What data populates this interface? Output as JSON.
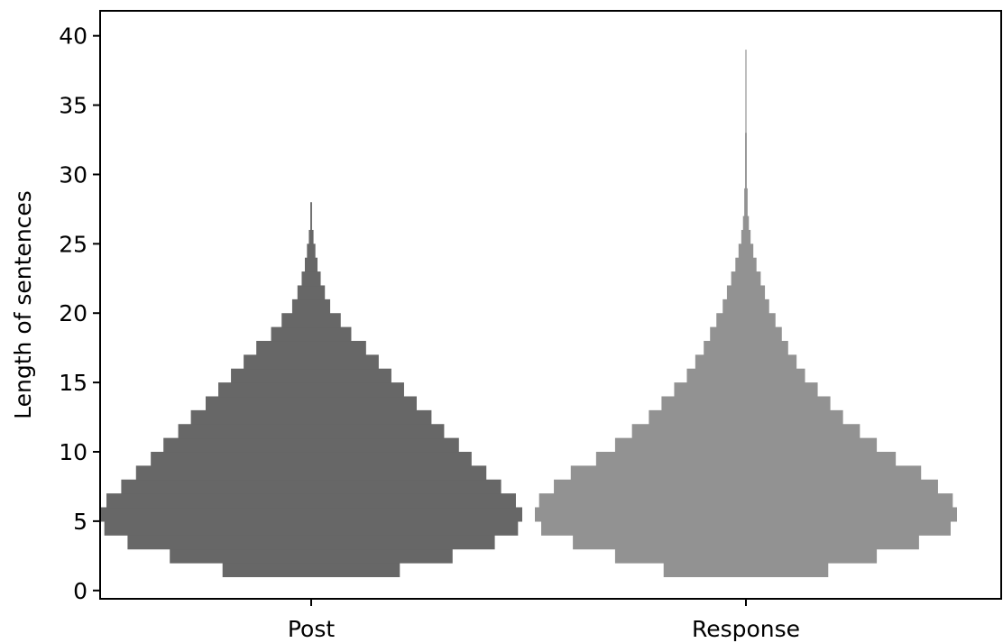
{
  "chart_data": {
    "type": "histogram-violin",
    "title": "",
    "xlabel": "",
    "ylabel": "Length of sentences",
    "ylim": [
      -0.6,
      41.8
    ],
    "yticks": [
      0,
      5,
      10,
      15,
      20,
      25,
      30,
      35,
      40
    ],
    "categories": [
      "Post",
      "Response"
    ],
    "grid": false,
    "legend": "none",
    "colors": {
      "Post": "#676767",
      "Response": "#929292"
    },
    "note_widths": "relative half-width of each length bin (fraction of max half-width per category)",
    "series": [
      {
        "name": "Post",
        "bins": [
          {
            "y0": 1,
            "y1": 2,
            "w": 0.42
          },
          {
            "y0": 2,
            "y1": 3,
            "w": 0.67
          },
          {
            "y0": 3,
            "y1": 4,
            "w": 0.87
          },
          {
            "y0": 4,
            "y1": 5,
            "w": 0.98
          },
          {
            "y0": 5,
            "y1": 6,
            "w": 1.0
          },
          {
            "y0": 6,
            "y1": 7,
            "w": 0.97
          },
          {
            "y0": 7,
            "y1": 8,
            "w": 0.9
          },
          {
            "y0": 8,
            "y1": 9,
            "w": 0.83
          },
          {
            "y0": 9,
            "y1": 10,
            "w": 0.76
          },
          {
            "y0": 10,
            "y1": 11,
            "w": 0.7
          },
          {
            "y0": 11,
            "y1": 12,
            "w": 0.63
          },
          {
            "y0": 12,
            "y1": 13,
            "w": 0.57
          },
          {
            "y0": 13,
            "y1": 14,
            "w": 0.5
          },
          {
            "y0": 14,
            "y1": 15,
            "w": 0.44
          },
          {
            "y0": 15,
            "y1": 16,
            "w": 0.38
          },
          {
            "y0": 16,
            "y1": 17,
            "w": 0.32
          },
          {
            "y0": 17,
            "y1": 18,
            "w": 0.26
          },
          {
            "y0": 18,
            "y1": 19,
            "w": 0.19
          },
          {
            "y0": 19,
            "y1": 20,
            "w": 0.14
          },
          {
            "y0": 20,
            "y1": 21,
            "w": 0.09
          },
          {
            "y0": 21,
            "y1": 22,
            "w": 0.065
          },
          {
            "y0": 22,
            "y1": 23,
            "w": 0.045
          },
          {
            "y0": 23,
            "y1": 24,
            "w": 0.03
          },
          {
            "y0": 24,
            "y1": 25,
            "w": 0.02
          },
          {
            "y0": 25,
            "y1": 26,
            "w": 0.011
          },
          {
            "y0": 26,
            "y1": 28,
            "w": 0.004
          }
        ]
      },
      {
        "name": "Response",
        "bins": [
          {
            "y0": 1,
            "y1": 2,
            "w": 0.39
          },
          {
            "y0": 2,
            "y1": 3,
            "w": 0.62
          },
          {
            "y0": 3,
            "y1": 4,
            "w": 0.82
          },
          {
            "y0": 4,
            "y1": 5,
            "w": 0.97
          },
          {
            "y0": 5,
            "y1": 6,
            "w": 1.0
          },
          {
            "y0": 6,
            "y1": 7,
            "w": 0.98
          },
          {
            "y0": 7,
            "y1": 8,
            "w": 0.91
          },
          {
            "y0": 8,
            "y1": 9,
            "w": 0.83
          },
          {
            "y0": 9,
            "y1": 10,
            "w": 0.71
          },
          {
            "y0": 10,
            "y1": 11,
            "w": 0.62
          },
          {
            "y0": 11,
            "y1": 12,
            "w": 0.54
          },
          {
            "y0": 12,
            "y1": 13,
            "w": 0.46
          },
          {
            "y0": 13,
            "y1": 14,
            "w": 0.4
          },
          {
            "y0": 14,
            "y1": 15,
            "w": 0.34
          },
          {
            "y0": 15,
            "y1": 16,
            "w": 0.28
          },
          {
            "y0": 16,
            "y1": 17,
            "w": 0.24
          },
          {
            "y0": 17,
            "y1": 18,
            "w": 0.2
          },
          {
            "y0": 18,
            "y1": 19,
            "w": 0.17
          },
          {
            "y0": 19,
            "y1": 20,
            "w": 0.14
          },
          {
            "y0": 20,
            "y1": 21,
            "w": 0.11
          },
          {
            "y0": 21,
            "y1": 22,
            "w": 0.09
          },
          {
            "y0": 22,
            "y1": 23,
            "w": 0.07
          },
          {
            "y0": 23,
            "y1": 24,
            "w": 0.05
          },
          {
            "y0": 24,
            "y1": 25,
            "w": 0.035
          },
          {
            "y0": 25,
            "y1": 26,
            "w": 0.022
          },
          {
            "y0": 26,
            "y1": 27,
            "w": 0.014
          },
          {
            "y0": 27,
            "y1": 29,
            "w": 0.008
          },
          {
            "y0": 29,
            "y1": 33,
            "w": 0.004
          },
          {
            "y0": 33,
            "y1": 39,
            "w": 0.002
          }
        ]
      }
    ]
  }
}
